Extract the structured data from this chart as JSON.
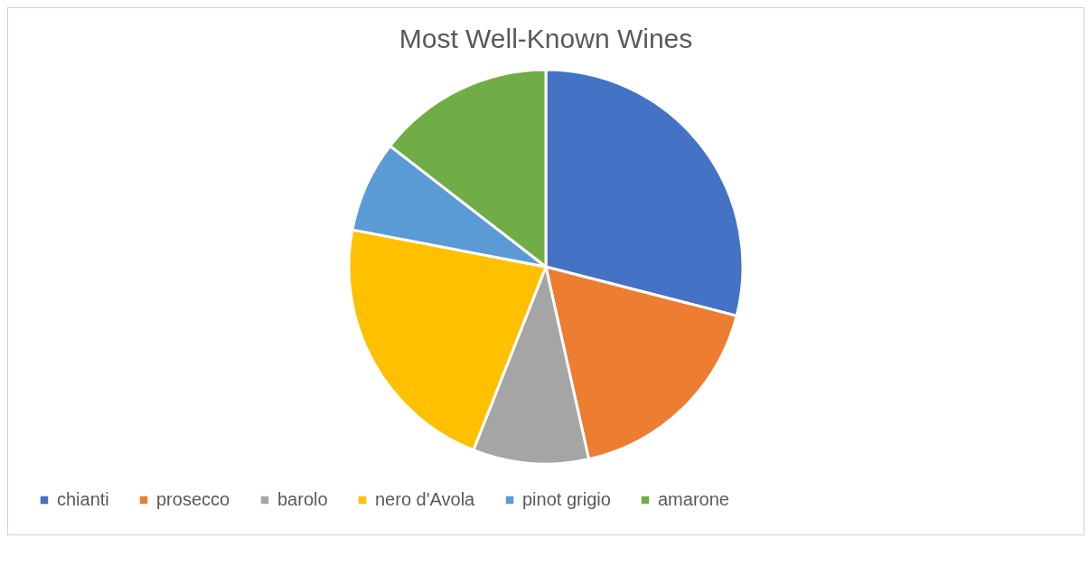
{
  "chart_data": {
    "type": "pie",
    "title": "Most Well-Known Wines",
    "categories": [
      "chianti",
      "prosecco",
      "barolo",
      "nero d'Avola",
      "pinot grigio",
      "amarone"
    ],
    "values": [
      29,
      17.5,
      9.5,
      22,
      7.5,
      14.5
    ],
    "colors": [
      "#4472c4",
      "#ed7d31",
      "#a5a5a5",
      "#ffc000",
      "#5b9bd5",
      "#70ad47"
    ],
    "legend": "bottom"
  }
}
